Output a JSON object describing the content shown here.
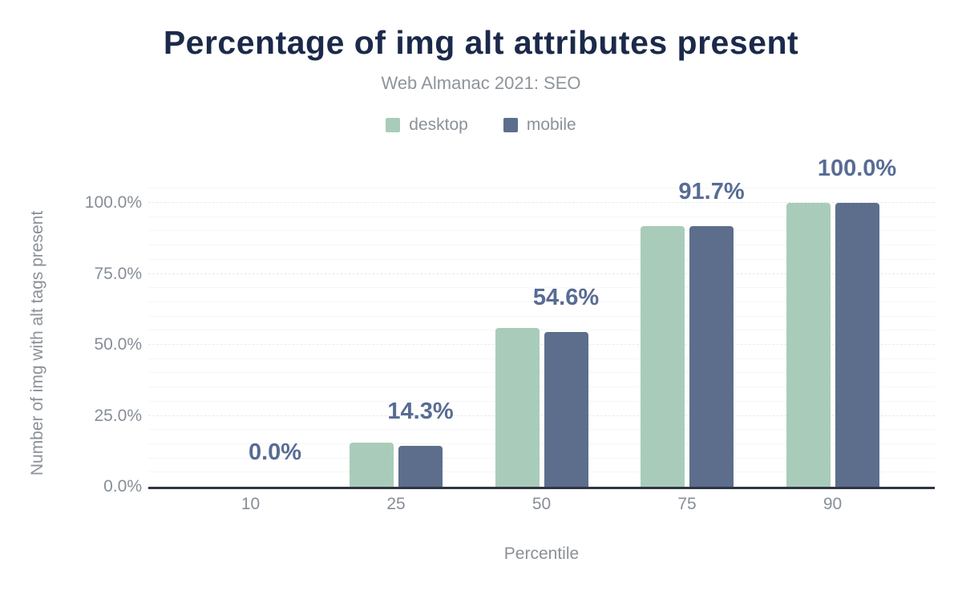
{
  "chart": {
    "title": "Percentage of img alt attributes present",
    "subtitle": "Web Almanac 2021: SEO"
  },
  "colors": {
    "background": "#ffffff",
    "title_text": "#1b2a4a",
    "subtitle_text": "#8e949b",
    "axis_text": "#878e97",
    "desktop_series": "#a9ccba",
    "mobile_series": "#5c6e8c",
    "data_label_text": "#586c94",
    "axis_line": "#2f3542",
    "grid_major": "#e7e9ec",
    "grid_minor": "#f5f6f7"
  },
  "chart_data": {
    "type": "bar",
    "title": "Percentage of img alt attributes present",
    "subtitle": "Web Almanac 2021: SEO",
    "xlabel": "Percentile",
    "ylabel": "Number of img with alt tags present",
    "categories": [
      "10",
      "25",
      "50",
      "75",
      "90"
    ],
    "series": [
      {
        "name": "desktop",
        "color": "#a9ccba",
        "values": [
          0.0,
          15.6,
          56.0,
          91.8,
          100.0
        ]
      },
      {
        "name": "mobile",
        "color": "#5c6e8c",
        "values": [
          0.0,
          14.3,
          54.6,
          91.7,
          100.0
        ]
      }
    ],
    "data_labels": [
      "0.0%",
      "14.3%",
      "54.6%",
      "91.7%",
      "100.0%"
    ],
    "data_labels_for_series": "mobile",
    "yticks": [
      {
        "value": 0,
        "label": "0.0%"
      },
      {
        "value": 25,
        "label": "25.0%"
      },
      {
        "value": 50,
        "label": "50.0%"
      },
      {
        "value": 75,
        "label": "75.0%"
      },
      {
        "value": 100,
        "label": "100.0%"
      }
    ],
    "ylim": [
      0,
      105
    ],
    "grid": {
      "major_step": 25,
      "minor_step": 5,
      "visible": true
    },
    "legend_position": "top"
  }
}
